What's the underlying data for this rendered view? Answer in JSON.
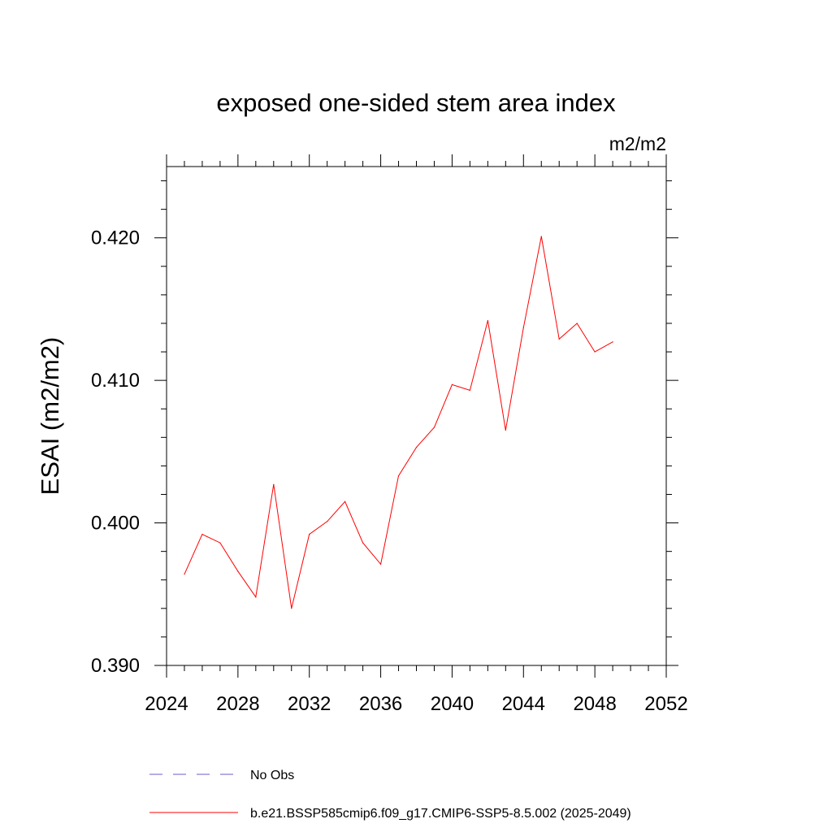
{
  "chart_data": {
    "type": "line",
    "title": "exposed one-sided stem area index",
    "units_label": "m2/m2",
    "ylabel": "ESAI  (m2/m2)",
    "xlabel": "",
    "xlim": [
      2024,
      2052
    ],
    "ylim": [
      0.39,
      0.425
    ],
    "x_ticks": [
      2024,
      2028,
      2032,
      2036,
      2040,
      2044,
      2048,
      2052
    ],
    "x_tick_labels": [
      "2024",
      "2028",
      "2032",
      "2036",
      "2040",
      "2044",
      "2048",
      "2052"
    ],
    "y_ticks": [
      0.39,
      0.4,
      0.41,
      0.42
    ],
    "y_tick_labels": [
      "0.390",
      "0.400",
      "0.410",
      "0.420"
    ],
    "series": [
      {
        "name": "b.e21.BSSP585cmip6.f09_g17.CMIP6-SSP5-8.5.002 (2025-2049)",
        "color": "#ff0000",
        "style": "solid",
        "x": [
          2025,
          2026,
          2027,
          2028,
          2029,
          2030,
          2031,
          2032,
          2033,
          2034,
          2035,
          2036,
          2037,
          2038,
          2039,
          2040,
          2041,
          2042,
          2043,
          2044,
          2045,
          2046,
          2047,
          2048,
          2049
        ],
        "y": [
          0.3964,
          0.3992,
          0.3986,
          0.3966,
          0.3948,
          0.4027,
          0.394,
          0.3992,
          0.4001,
          0.4015,
          0.3986,
          0.3971,
          0.4033,
          0.4053,
          0.4067,
          0.4097,
          0.4093,
          0.4142,
          0.4065,
          0.4137,
          0.4201,
          0.4129,
          0.414,
          0.412,
          0.4127
        ]
      }
    ],
    "legend": [
      {
        "label": "No Obs",
        "color": "#6a5acd",
        "style": "dashed"
      },
      {
        "label": "b.e21.BSSP585cmip6.f09_g17.CMIP6-SSP5-8.5.002 (2025-2049)",
        "color": "#ff0000",
        "style": "solid"
      }
    ],
    "legend_position": "bottom"
  }
}
